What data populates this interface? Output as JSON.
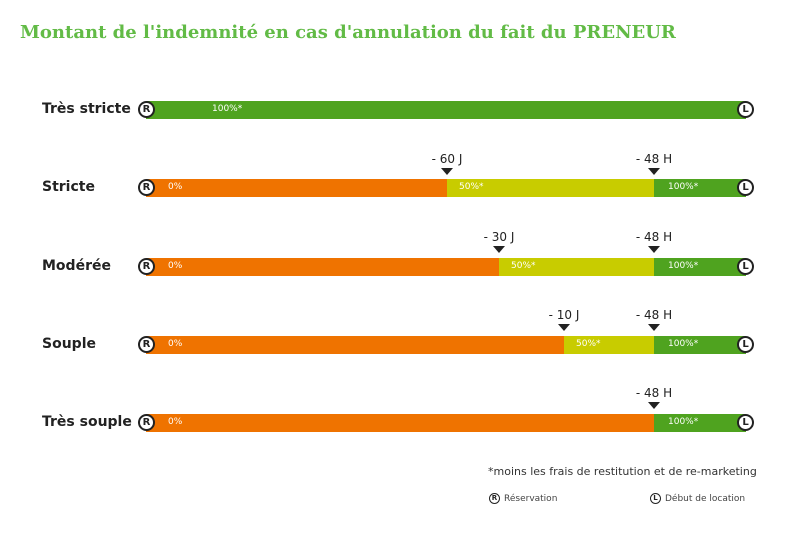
{
  "title": "Montant de l'indemnité en cas d'annulation du fait du PRENEUR",
  "colors": {
    "title": "#62bb46",
    "orange": "#ef7300",
    "yellow": "#c8cc00",
    "green": "#4fa31f"
  },
  "start_symbol": "R",
  "end_symbol": "L",
  "rows": [
    {
      "label": "Très stricte",
      "segments": [
        "100%*"
      ]
    },
    {
      "label": "Stricte",
      "markers": [
        "- 60 J",
        "- 48 H"
      ],
      "segments": [
        "0%",
        "50%*",
        "100%*"
      ]
    },
    {
      "label": "Modérée",
      "markers": [
        "- 30 J",
        "- 48 H"
      ],
      "segments": [
        "0%",
        "50%*",
        "100%*"
      ]
    },
    {
      "label": "Souple",
      "markers": [
        "- 10 J",
        "- 48 H"
      ],
      "segments": [
        "0%",
        "50%*",
        "100%*"
      ]
    },
    {
      "label": "Très souple",
      "markers": [
        "- 48 H"
      ],
      "segments": [
        "0%",
        "100%*"
      ]
    }
  ],
  "footnote": "*moins les frais de restitution et de re-marketing",
  "legend": {
    "reservation": "Réservation",
    "debut": "Début de location"
  }
}
